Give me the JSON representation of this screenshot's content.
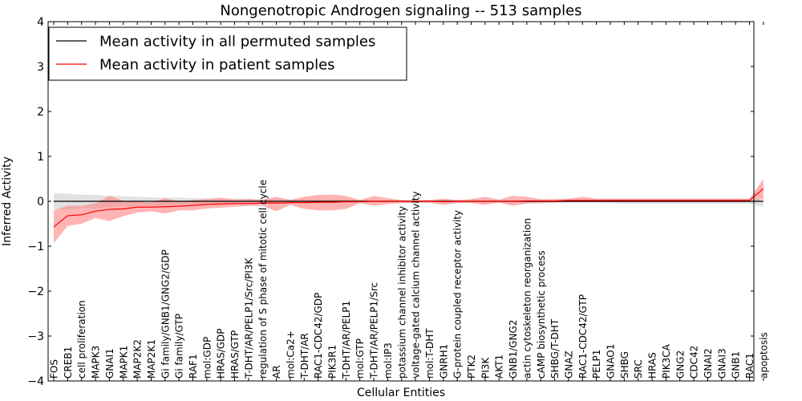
{
  "chart_data": {
    "type": "line",
    "title": "Nongenotropic Androgen signaling -- 513 samples",
    "xlabel": "Cellular Entities",
    "ylabel": "Inferred Activity",
    "ylim": [
      -4,
      4
    ],
    "yticks": [
      -4,
      -3,
      -2,
      -1,
      0,
      1,
      2,
      3,
      4
    ],
    "ytick_labels": [
      "−4",
      "−3",
      "−2",
      "−1",
      "0",
      "1",
      "2",
      "3",
      "4"
    ],
    "legend_position": "top-left",
    "categories": [
      "FOS",
      "CREB1",
      "cell proliferation",
      "MAPK3",
      "GNAI1",
      "MAPK1",
      "MAP2K2",
      "MAP2K1",
      "Gi family/GNB1/GNG2/GDP",
      "Gi family/GTP",
      "RAF1",
      "mol:GDP",
      "HRAS/GDP",
      "HRAS/GTP",
      "T-DHT/AR/PELP1/Src/PI3K",
      "regulation of S phase of mitotic cell cycle",
      "AR",
      "mol:Ca2+",
      "T-DHT/AR",
      "RAC1-CDC42/GDP",
      "PIK3R1",
      "T-DHT/AR/PELP1",
      "mol:GTP",
      "T-DHT/AR/PELP1/Src",
      "mol:IP3",
      "potassium channel inhibitor activity",
      "voltage-gated calcium channel activity",
      "mol:T-DHT",
      "GNRH1",
      "G-protein coupled receptor activity",
      "PTK2",
      "PI3K",
      "AKT1",
      "GNB1/GNG2",
      "actin cytoskeleton reorganization",
      "cAMP biosynthetic process",
      "SHBG/T-DHT",
      "GNAZ",
      "RAC1-CDC42/GTP",
      "PELP1",
      "GNAO1",
      "SHBG",
      "SRC",
      "HRAS",
      "PIK3CA",
      "GNG2",
      "CDC42",
      "GNAI2",
      "GNAI3",
      "GNB1",
      "RAC1",
      "apoptosis"
    ],
    "series": [
      {
        "name": "Mean activity in all permuted samples",
        "color": "#000000",
        "values": [
          0.0,
          0.0,
          0.0,
          0.0,
          0.0,
          0.0,
          0.0,
          0.0,
          0.0,
          0.0,
          0.0,
          0.0,
          0.0,
          0.0,
          0.0,
          0.0,
          0.0,
          0.0,
          0.0,
          0.0,
          0.0,
          0.0,
          0.0,
          0.0,
          0.0,
          0.0,
          0.0,
          0.0,
          0.0,
          0.0,
          0.0,
          0.0,
          0.0,
          0.0,
          0.0,
          0.0,
          0.0,
          0.0,
          0.0,
          0.0,
          0.0,
          0.0,
          0.0,
          0.0,
          0.0,
          0.0,
          0.0,
          0.0,
          0.0,
          0.0,
          0.0,
          0.0
        ],
        "band_lower": [
          -0.18,
          -0.18,
          -0.15,
          -0.15,
          -0.13,
          -0.12,
          -0.1,
          -0.1,
          -0.08,
          -0.08,
          -0.07,
          -0.07,
          -0.06,
          -0.06,
          -0.06,
          -0.05,
          -0.05,
          -0.05,
          -0.04,
          -0.04,
          -0.04,
          -0.04,
          -0.03,
          -0.03,
          -0.03,
          -0.03,
          -0.03,
          -0.03,
          -0.03,
          -0.03,
          -0.03,
          -0.03,
          -0.03,
          -0.03,
          -0.03,
          -0.03,
          -0.03,
          -0.03,
          -0.03,
          -0.03,
          -0.04,
          -0.05,
          -0.05,
          -0.05,
          -0.05,
          -0.05,
          -0.05,
          -0.05,
          -0.05,
          -0.05,
          -0.05,
          -0.12
        ],
        "band_upper": [
          0.18,
          0.17,
          0.15,
          0.14,
          0.12,
          0.11,
          0.1,
          0.09,
          0.08,
          0.08,
          0.07,
          0.07,
          0.06,
          0.06,
          0.06,
          0.05,
          0.05,
          0.05,
          0.05,
          0.04,
          0.04,
          0.04,
          0.04,
          0.03,
          0.03,
          0.03,
          0.03,
          0.03,
          0.03,
          0.03,
          0.03,
          0.03,
          0.03,
          0.03,
          0.03,
          0.03,
          0.03,
          0.03,
          0.03,
          0.03,
          0.03,
          0.03,
          0.03,
          0.03,
          0.03,
          0.03,
          0.03,
          0.03,
          0.03,
          0.03,
          0.03,
          0.03
        ]
      },
      {
        "name": "Mean activity in patient samples",
        "color": "#ff0000",
        "values": [
          -0.57,
          -0.32,
          -0.3,
          -0.22,
          -0.18,
          -0.17,
          -0.13,
          -0.13,
          -0.12,
          -0.11,
          -0.09,
          -0.07,
          -0.06,
          -0.05,
          -0.05,
          -0.04,
          -0.04,
          -0.03,
          -0.03,
          -0.02,
          -0.02,
          -0.01,
          -0.01,
          0.0,
          0.0,
          0.0,
          0.0,
          0.0,
          -0.01,
          0.0,
          0.0,
          0.0,
          0.0,
          0.0,
          0.01,
          0.01,
          0.01,
          0.02,
          0.02,
          0.02,
          0.02,
          0.02,
          0.02,
          0.02,
          0.02,
          0.02,
          0.02,
          0.02,
          0.02,
          0.02,
          0.02,
          0.28
        ],
        "band_lower": [
          -0.93,
          -0.55,
          -0.5,
          -0.37,
          -0.44,
          -0.33,
          -0.25,
          -0.22,
          -0.27,
          -0.2,
          -0.2,
          -0.16,
          -0.14,
          -0.12,
          -0.1,
          -0.1,
          -0.22,
          -0.08,
          -0.17,
          -0.2,
          -0.2,
          -0.17,
          -0.04,
          -0.1,
          -0.06,
          -0.04,
          -0.03,
          -0.03,
          -0.08,
          -0.04,
          -0.04,
          -0.08,
          -0.03,
          -0.1,
          -0.05,
          -0.04,
          -0.03,
          -0.02,
          -0.02,
          -0.02,
          -0.02,
          -0.02,
          -0.02,
          -0.02,
          -0.02,
          -0.02,
          -0.02,
          -0.02,
          -0.02,
          -0.02,
          -0.02,
          0.05
        ],
        "band_upper": [
          -0.2,
          -0.1,
          -0.1,
          -0.05,
          0.12,
          0.01,
          0.0,
          -0.03,
          0.07,
          -0.01,
          0.03,
          0.05,
          0.08,
          0.04,
          0.05,
          0.03,
          0.1,
          0.03,
          0.1,
          0.14,
          0.15,
          0.12,
          0.03,
          0.12,
          0.07,
          0.03,
          0.02,
          0.03,
          0.06,
          0.03,
          0.05,
          0.1,
          0.04,
          0.12,
          0.1,
          0.05,
          0.05,
          0.06,
          0.1,
          0.06,
          0.06,
          0.06,
          0.06,
          0.06,
          0.06,
          0.06,
          0.06,
          0.06,
          0.06,
          0.06,
          0.06,
          0.5
        ]
      }
    ]
  },
  "style": {
    "band_gray": "#c8c8c8",
    "band_red": "#ff8080"
  }
}
